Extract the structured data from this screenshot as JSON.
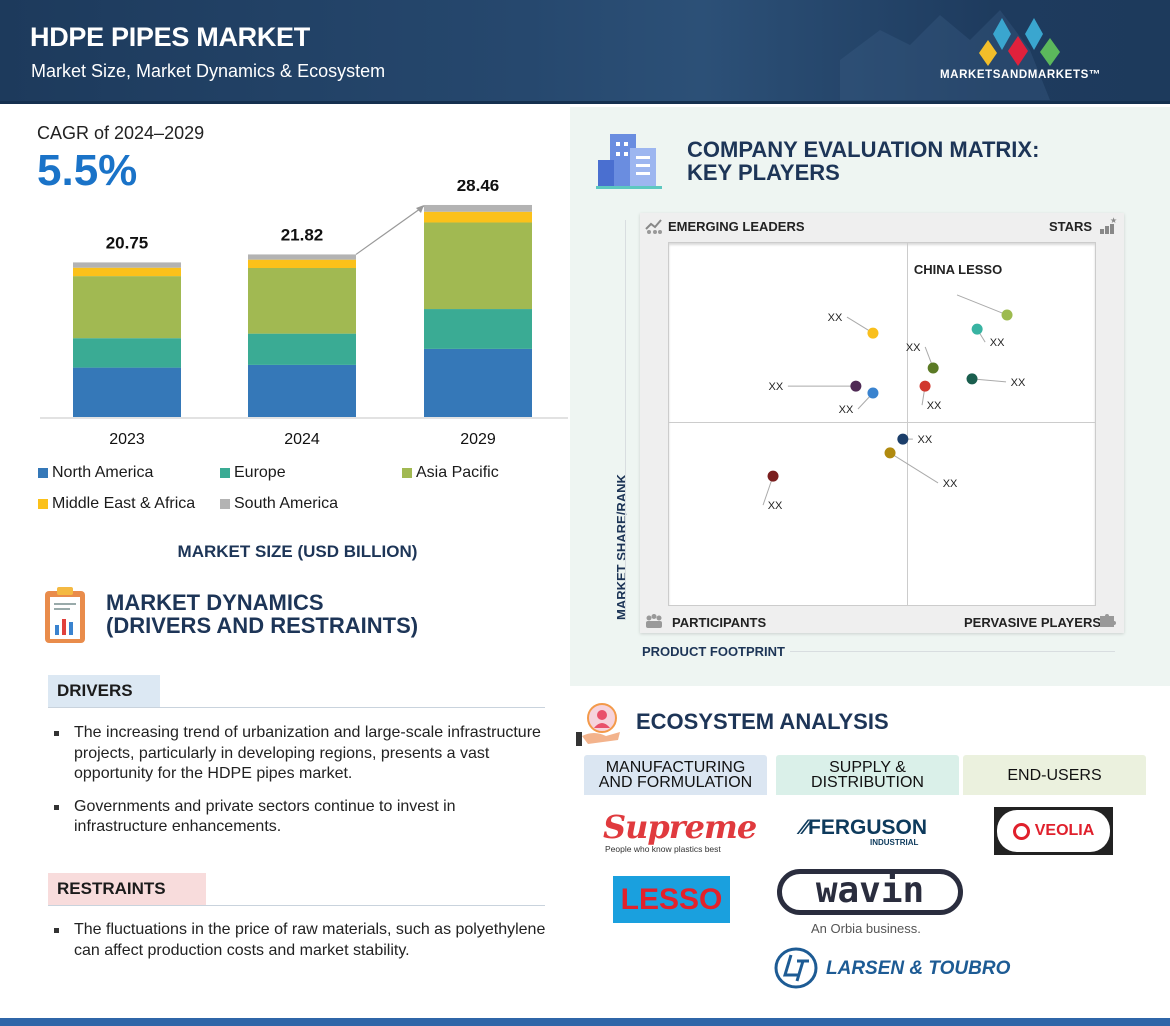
{
  "header": {
    "title": "HDPE PIPES MARKET",
    "subtitle": "Market Size, Market Dynamics & Ecosystem",
    "brand": "MARKETSANDMARKETS™"
  },
  "market_size": {
    "cagr_label": "CAGR of 2024–2029",
    "cagr_value": "5.5%",
    "footer_label": "MARKET SIZE (USD BILLION)"
  },
  "chart_data": [
    {
      "type": "bar",
      "stacked": true,
      "title": "MARKET SIZE (USD BILLION)",
      "categories": [
        "2023",
        "2024",
        "2029"
      ],
      "totals": [
        "20.75",
        "21.82",
        "28.46"
      ],
      "series": [
        {
          "name": "North America",
          "color": "#3578b8",
          "values": [
            6.63,
            6.99,
            9.14
          ]
        },
        {
          "name": "Europe",
          "color": "#3aab94",
          "values": [
            3.95,
            4.2,
            5.35
          ]
        },
        {
          "name": "Asia Pacific",
          "color": "#a1b952",
          "values": [
            8.33,
            8.81,
            11.62
          ]
        },
        {
          "name": "Middle East & Africa",
          "color": "#fbc11a",
          "values": [
            1.13,
            1.12,
            1.44
          ]
        },
        {
          "name": "South America",
          "color": "#b3b3b3",
          "values": [
            0.71,
            0.7,
            0.91
          ]
        }
      ],
      "ylim": [
        0,
        30
      ],
      "legend": "bottom"
    },
    {
      "type": "scatter",
      "title": "COMPANY EVALUATION MATRIX: KEY PLAYERS",
      "xlabel": "PRODUCT FOOTPRINT",
      "ylabel": "MARKET SHARE/RANK",
      "xlim": [
        0,
        10
      ],
      "ylim": [
        0,
        10
      ],
      "quadrants": {
        "top_left": "EMERGING LEADERS",
        "top_right": "STARS",
        "bottom_left": "PARTICIPANTS",
        "bottom_right": "PERVASIVE PLAYERS"
      },
      "points": [
        {
          "label": "CHINA LESSO",
          "x": 7.94,
          "y": 7.99,
          "color": "#9dbb4f"
        },
        {
          "label": "XX",
          "x": 4.8,
          "y": 7.49,
          "color": "#f9bf1c"
        },
        {
          "label": "XX",
          "x": 7.24,
          "y": 7.6,
          "color": "#38b3a2"
        },
        {
          "label": "XX",
          "x": 6.21,
          "y": 6.53,
          "color": "#5b7a25"
        },
        {
          "label": "XX",
          "x": 7.12,
          "y": 6.23,
          "color": "#1a5e4e"
        },
        {
          "label": "XX",
          "x": 6.02,
          "y": 6.03,
          "color": "#d1382f"
        },
        {
          "label": "XX",
          "x": 4.4,
          "y": 6.03,
          "color": "#4f2a55"
        },
        {
          "label": "XX",
          "x": 4.8,
          "y": 5.84,
          "color": "#3a83cf"
        },
        {
          "label": "XX",
          "x": 5.5,
          "y": 4.57,
          "color": "#1b3e6a"
        },
        {
          "label": "XX",
          "x": 5.2,
          "y": 4.19,
          "color": "#b08a0f"
        },
        {
          "label": "XX",
          "x": 2.46,
          "y": 3.55,
          "color": "#7a1e1e"
        }
      ]
    }
  ],
  "dynamics": {
    "title_line1": "MARKET DYNAMICS",
    "title_line2": "(DRIVERS AND RESTRAINTS)",
    "drivers_label": "DRIVERS",
    "drivers": [
      "The increasing trend of urbanization and large-scale infrastructure projects, particularly in developing regions, presents a vast opportunity for the HDPE pipes market.",
      "Governments and private sectors continue to invest in infrastructure enhancements."
    ],
    "restraints_label": "RESTRAINTS",
    "restraints": [
      "The fluctuations in the price of raw materials, such as polyethylene can affect production costs and market stability."
    ]
  },
  "matrix": {
    "title_line1": "COMPANY EVALUATION MATRIX:",
    "title_line2": "KEY PLAYERS"
  },
  "ecosystem": {
    "title": "ECOSYSTEM ANALYSIS",
    "columns": [
      {
        "header_line1": "MANUFACTURING",
        "header_line2": "AND FORMULATION",
        "color": "#dbe6f2"
      },
      {
        "header_line1": "SUPPLY &",
        "header_line2": "DISTRIBUTION",
        "color": "#daf0e9"
      },
      {
        "header_line1": "END-USERS",
        "header_line2": "",
        "color": "#ebf1de"
      }
    ],
    "logos": {
      "supreme": "Supreme",
      "supreme_tag": "People who know plastics best",
      "lesso": "LESSO",
      "ferguson": "FERGUSON",
      "ferguson_sub": "INDUSTRIAL",
      "wavin": "wavin",
      "wavin_sub": "An Orbia business.",
      "lt": "LARSEN & TOUBRO",
      "veolia": "VEOLIA"
    }
  }
}
